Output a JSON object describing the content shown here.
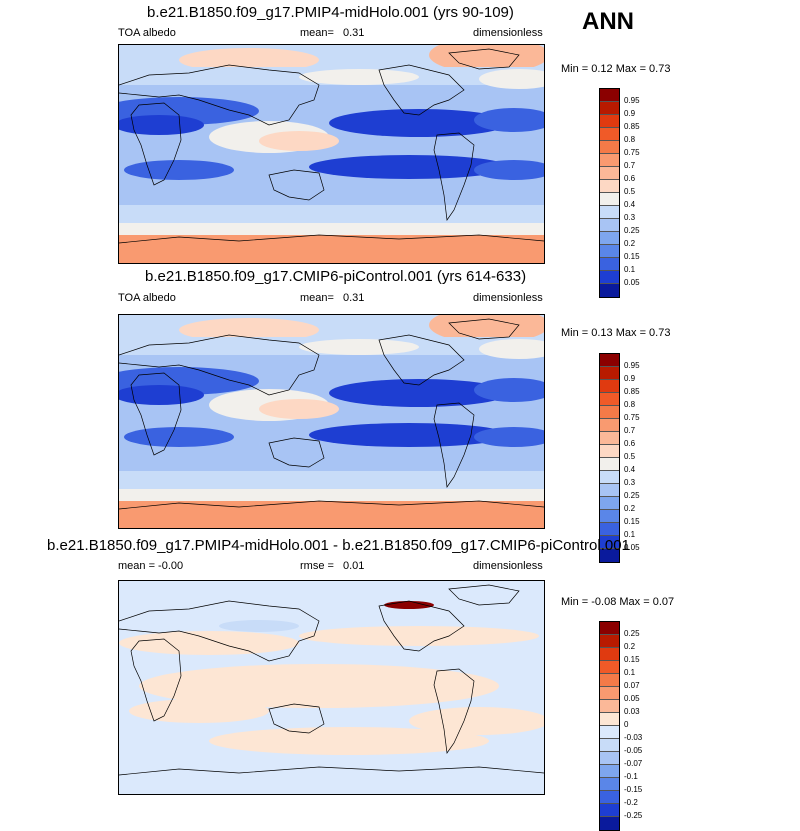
{
  "season": "ANN",
  "panels": [
    {
      "title": "b.e21.B1850.f09_g17.PMIP4-midHolo.001 (yrs 90-109)",
      "left_label": "TOA albedo",
      "center_label": "mean=",
      "center_value": "0.31",
      "right_label": "dimensionless",
      "minmax": "Min =  0.12 Max =  0.73",
      "colorbar": {
        "labels": [
          "0.95",
          "0.9",
          "0.85",
          "0.8",
          "0.75",
          "0.7",
          "0.6",
          "0.5",
          "0.4",
          "0.3",
          "0.25",
          "0.2",
          "0.15",
          "0.1",
          "0.05"
        ],
        "colors": [
          "#8b0000",
          "#b81a00",
          "#e03a10",
          "#f05a28",
          "#f47a48",
          "#f99a70",
          "#fbb898",
          "#fdd8c4",
          "#f2f0ec",
          "#c8dcf8",
          "#a8c4f4",
          "#7ea6ee",
          "#5a86e8",
          "#3a62e0",
          "#1e3ed2",
          "#0a1a9c"
        ]
      }
    },
    {
      "title": "b.e21.B1850.f09_g17.CMIP6-piControl.001 (yrs 614-633)",
      "left_label": "TOA albedo",
      "center_label": "mean=",
      "center_value": "0.31",
      "right_label": "dimensionless",
      "minmax": "Min =  0.13 Max =  0.73",
      "colorbar": {
        "labels": [
          "0.95",
          "0.9",
          "0.85",
          "0.8",
          "0.75",
          "0.7",
          "0.6",
          "0.5",
          "0.4",
          "0.3",
          "0.25",
          "0.2",
          "0.15",
          "0.1",
          "0.05"
        ],
        "colors": [
          "#8b0000",
          "#b81a00",
          "#e03a10",
          "#f05a28",
          "#f47a48",
          "#f99a70",
          "#fbb898",
          "#fdd8c4",
          "#f2f0ec",
          "#c8dcf8",
          "#a8c4f4",
          "#7ea6ee",
          "#5a86e8",
          "#3a62e0",
          "#1e3ed2",
          "#0a1a9c"
        ]
      }
    },
    {
      "title": "b.e21.B1850.f09_g17.PMIP4-midHolo.001 - b.e21.B1850.f09_g17.CMIP6-piControl.001",
      "left_label": "mean =  -0.00",
      "center_label": "rmse =",
      "center_value": "0.01",
      "right_label": "dimensionless",
      "minmax": "Min = -0.08 Max =  0.07",
      "colorbar": {
        "labels": [
          "0.25",
          "0.2",
          "0.15",
          "0.1",
          "0.07",
          "0.05",
          "0.03",
          "0",
          "-0.03",
          "-0.05",
          "-0.07",
          "-0.1",
          "-0.15",
          "-0.2",
          "-0.25"
        ],
        "colors": [
          "#8b0000",
          "#b81a00",
          "#e03a10",
          "#f05a28",
          "#f47a48",
          "#f99a70",
          "#fbb898",
          "#fde6d4",
          "#dbe9fc",
          "#c8dcf8",
          "#a8c4f4",
          "#7ea6ee",
          "#5a86e8",
          "#3a62e0",
          "#1e3ed2",
          "#0a1a9c"
        ]
      }
    }
  ]
}
